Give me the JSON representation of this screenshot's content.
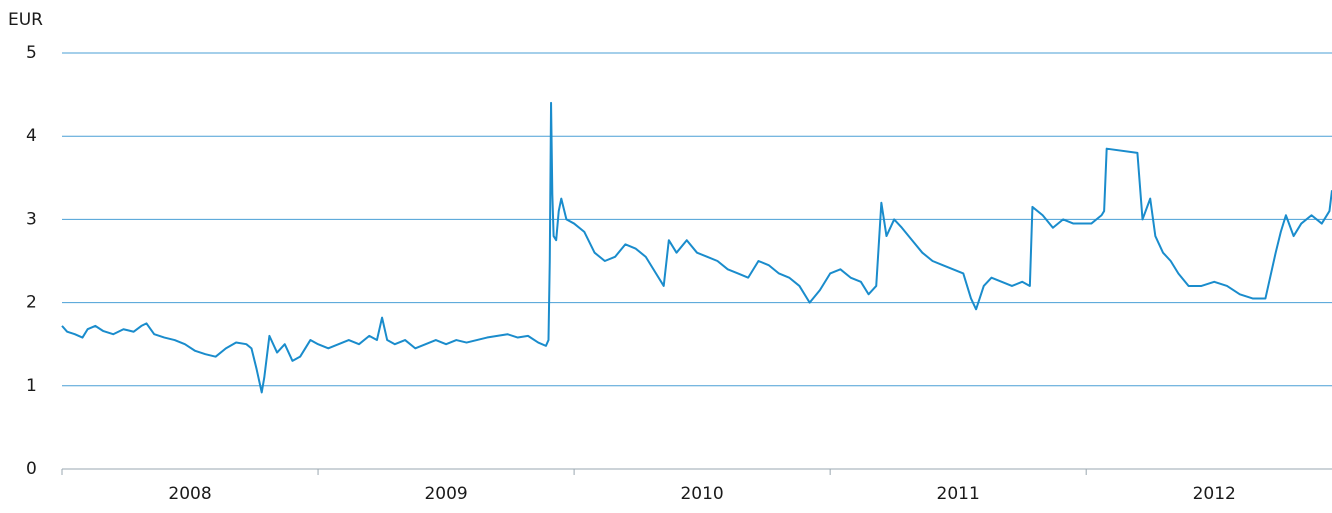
{
  "chart_data": {
    "type": "line",
    "y_label": "EUR",
    "xlim": [
      2008,
      2012.96
    ],
    "xticks": [
      2008,
      2009,
      2010,
      2011,
      2012
    ],
    "ylim": [
      0,
      5
    ],
    "yticks": [
      0,
      1,
      2,
      3,
      4,
      5
    ],
    "grid": true,
    "series": [
      {
        "color": "#1a8ccc",
        "x": [
          2008,
          2008.02,
          2008.05,
          2008.08,
          2008.1,
          2008.13,
          2008.16,
          2008.2,
          2008.24,
          2008.28,
          2008.31,
          2008.33,
          2008.36,
          2008.4,
          2008.44,
          2008.48,
          2008.52,
          2008.56,
          2008.6,
          2008.64,
          2008.68,
          2008.72,
          2008.74,
          2008.76,
          2008.78,
          2008.79,
          2008.81,
          2008.84,
          2008.87,
          2008.9,
          2008.93,
          2008.97,
          2009,
          2009.04,
          2009.08,
          2009.12,
          2009.16,
          2009.2,
          2009.23,
          2009.25,
          2009.27,
          2009.3,
          2009.34,
          2009.38,
          2009.42,
          2009.46,
          2009.5,
          2009.54,
          2009.58,
          2009.62,
          2009.66,
          2009.7,
          2009.74,
          2009.78,
          2009.82,
          2009.86,
          2009.89,
          2009.9,
          2009.905,
          2009.91,
          2009.915,
          2009.92,
          2009.93,
          2009.94,
          2009.95,
          2009.97,
          2010,
          2010.04,
          2010.08,
          2010.12,
          2010.16,
          2010.2,
          2010.24,
          2010.28,
          2010.32,
          2010.35,
          2010.37,
          2010.4,
          2010.44,
          2010.48,
          2010.52,
          2010.56,
          2010.6,
          2010.64,
          2010.68,
          2010.72,
          2010.76,
          2010.8,
          2010.84,
          2010.88,
          2010.92,
          2010.96,
          2011,
          2011.04,
          2011.08,
          2011.12,
          2011.15,
          2011.18,
          2011.2,
          2011.22,
          2011.25,
          2011.28,
          2011.32,
          2011.36,
          2011.4,
          2011.44,
          2011.48,
          2011.52,
          2011.55,
          2011.57,
          2011.6,
          2011.63,
          2011.67,
          2011.71,
          2011.75,
          2011.78,
          2011.79,
          2011.83,
          2011.87,
          2011.91,
          2011.95,
          2012,
          2012.02,
          2012.04,
          2012.06,
          2012.07,
          2012.08,
          2012.2,
          2012.22,
          2012.25,
          2012.27,
          2012.3,
          2012.33,
          2012.36,
          2012.4,
          2012.45,
          2012.5,
          2012.55,
          2012.6,
          2012.65,
          2012.7,
          2012.74,
          2012.76,
          2012.78,
          2012.81,
          2012.84,
          2012.88,
          2012.92,
          2012.95,
          2012.96
        ],
        "values": [
          1.72,
          1.65,
          1.62,
          1.58,
          1.68,
          1.72,
          1.66,
          1.62,
          1.68,
          1.65,
          1.72,
          1.75,
          1.62,
          1.58,
          1.55,
          1.5,
          1.42,
          1.38,
          1.35,
          1.45,
          1.52,
          1.5,
          1.45,
          1.2,
          0.92,
          1.1,
          1.6,
          1.4,
          1.5,
          1.3,
          1.35,
          1.55,
          1.5,
          1.45,
          1.5,
          1.55,
          1.5,
          1.6,
          1.55,
          1.82,
          1.55,
          1.5,
          1.55,
          1.45,
          1.5,
          1.55,
          1.5,
          1.55,
          1.52,
          1.55,
          1.58,
          1.6,
          1.62,
          1.58,
          1.6,
          1.52,
          1.48,
          1.55,
          2.5,
          4.4,
          3.3,
          2.8,
          2.75,
          3.1,
          3.25,
          3.0,
          2.95,
          2.85,
          2.6,
          2.5,
          2.55,
          2.7,
          2.65,
          2.55,
          2.35,
          2.2,
          2.75,
          2.6,
          2.75,
          2.6,
          2.55,
          2.5,
          2.4,
          2.35,
          2.3,
          2.5,
          2.45,
          2.35,
          2.3,
          2.2,
          2.0,
          2.15,
          2.35,
          2.4,
          2.3,
          2.25,
          2.1,
          2.2,
          3.2,
          2.8,
          3.0,
          2.9,
          2.75,
          2.6,
          2.5,
          2.45,
          2.4,
          2.35,
          2.05,
          1.92,
          2.2,
          2.3,
          2.25,
          2.2,
          2.25,
          2.2,
          3.15,
          3.05,
          2.9,
          3.0,
          2.95,
          2.95,
          2.95,
          3.0,
          3.05,
          3.1,
          3.85,
          3.8,
          3.0,
          3.25,
          2.8,
          2.6,
          2.5,
          2.35,
          2.2,
          2.2,
          2.25,
          2.2,
          2.1,
          2.05,
          2.05,
          2.6,
          2.85,
          3.05,
          2.8,
          2.95,
          3.05,
          2.95,
          3.1,
          3.35
        ]
      }
    ]
  }
}
